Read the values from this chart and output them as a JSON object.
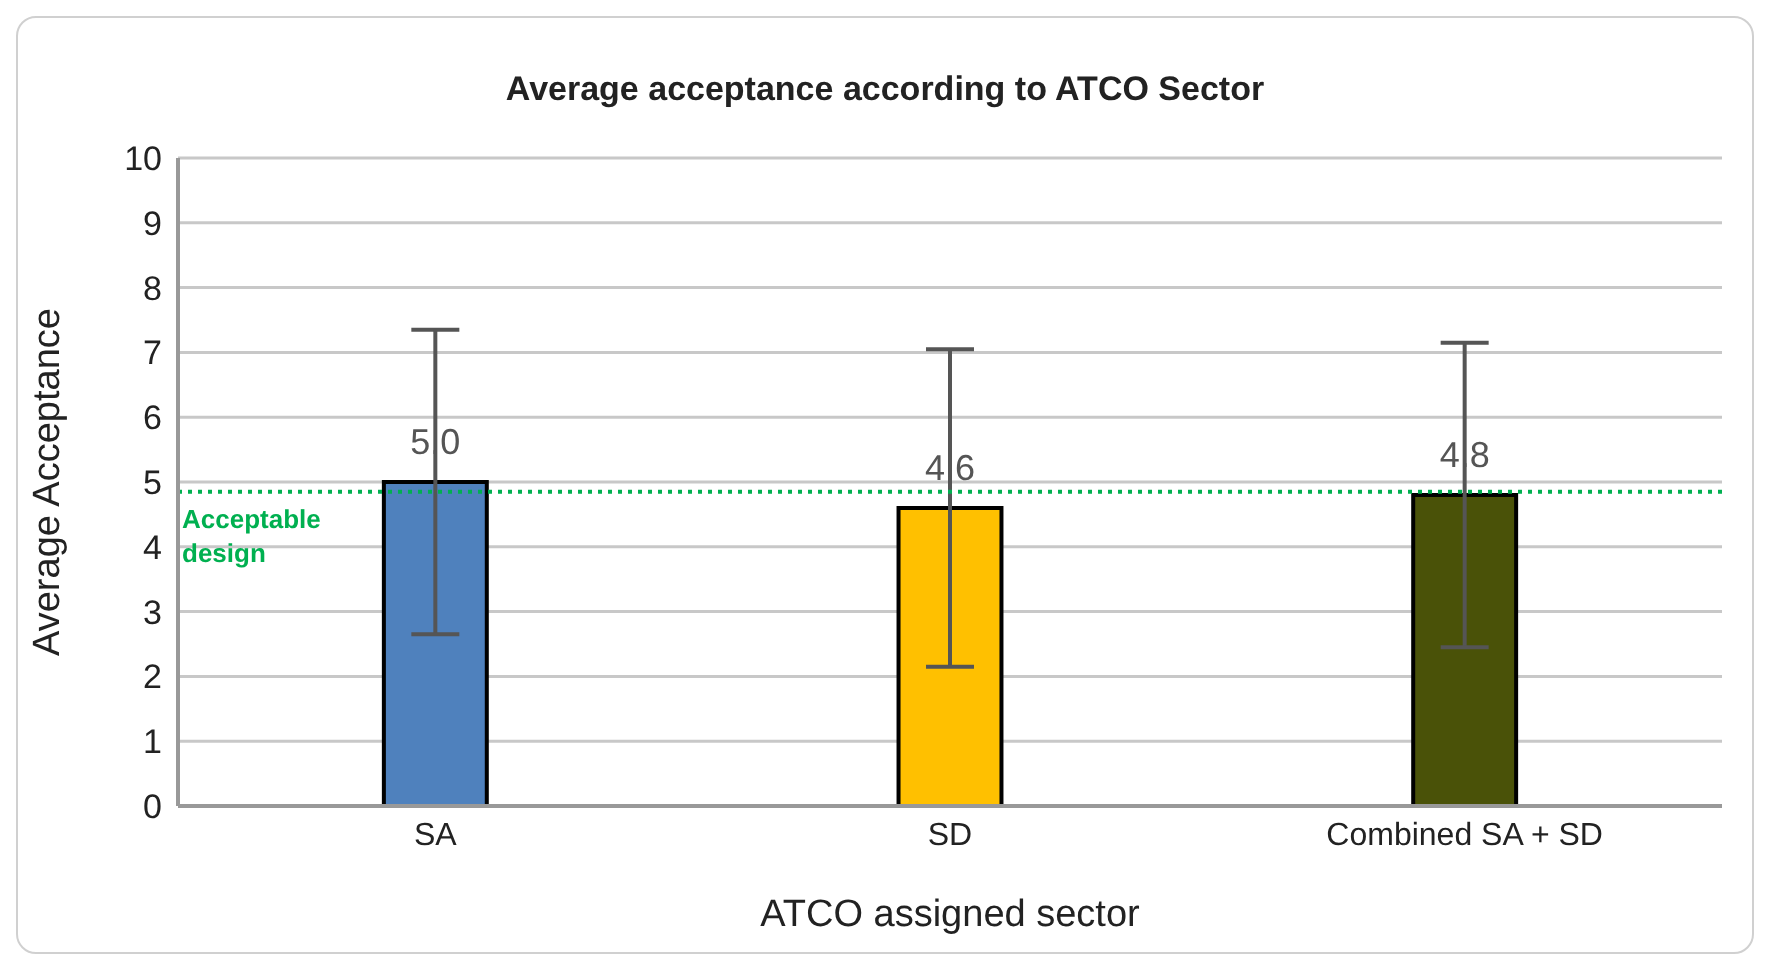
{
  "chart_data": {
    "type": "bar",
    "title": "Average acceptance according to ATCO Sector",
    "xlabel": "ATCO assigned sector",
    "ylabel": "Average Acceptance",
    "categories": [
      "SA",
      "SD",
      "Combined SA + SD"
    ],
    "values": [
      5.0,
      4.6,
      4.8
    ],
    "value_labels": [
      "5.0",
      "4.6",
      "4.8"
    ],
    "colors": [
      "#4f81bd",
      "#ffc000",
      "#4a5208"
    ],
    "errors": [
      2.35,
      2.45,
      2.35
    ],
    "ylim": [
      0,
      10
    ],
    "yticks": [
      0,
      1,
      2,
      3,
      4,
      5,
      6,
      7,
      8,
      9,
      10
    ],
    "grid": "y",
    "ref_lines": [
      {
        "axis": "y",
        "value": 4.85,
        "label": "Acceptable design",
        "color": "#00b050",
        "line_style": "dotted"
      }
    ]
  }
}
